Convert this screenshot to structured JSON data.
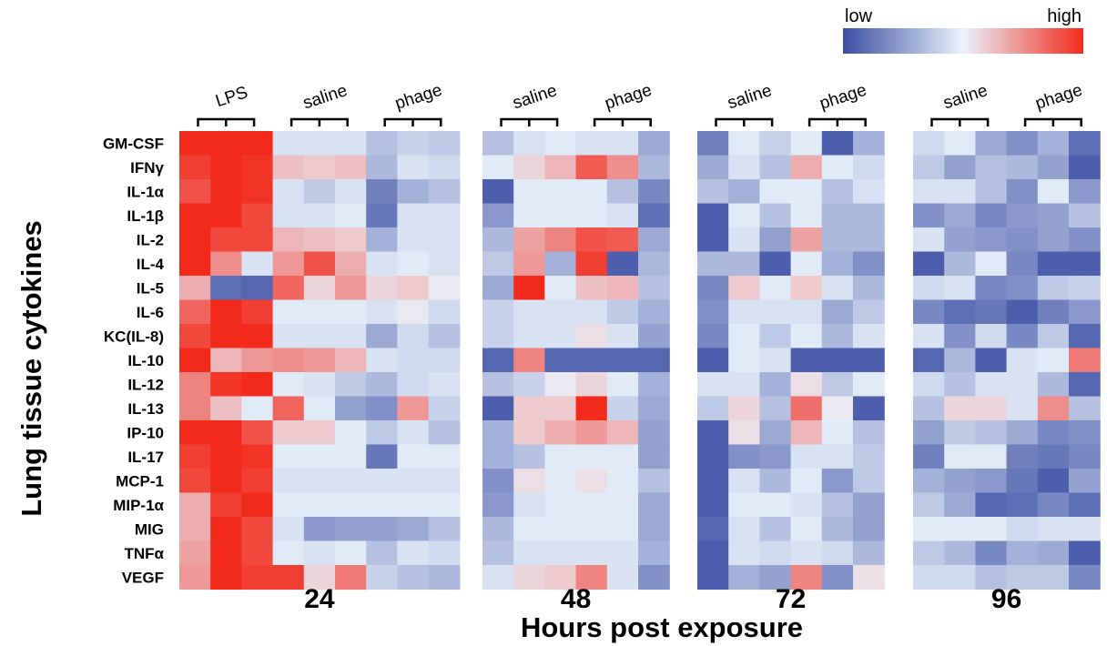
{
  "chart_data": {
    "type": "heatmap",
    "xlabel": "Hours post exposure",
    "ylabel": "Lung tissue cytokines",
    "legend": {
      "low_label": "low",
      "high_label": "high",
      "colors": [
        "#3b4fa3",
        "#eaf2fb",
        "#f22a1c"
      ],
      "placement": "top-right"
    },
    "rows": [
      "GM-CSF",
      "IFNγ",
      "IL-1α",
      "IL-1β",
      "IL-2",
      "IL-4",
      "IL-5",
      "IL-6",
      "KC(IL-8)",
      "IL-10",
      "IL-12",
      "IL-13",
      "IP-10",
      "IL-17",
      "MCP-1",
      "MIP-1α",
      "MIG",
      "TNFα",
      "VEGF"
    ],
    "panels": [
      {
        "time": "24",
        "groups": [
          {
            "label": "LPS",
            "columns": 3
          },
          {
            "label": "saline",
            "columns": 3
          },
          {
            "label": "phage",
            "columns": 3
          }
        ],
        "values": [
          [
            1.0,
            1.0,
            1.0,
            -0.1,
            -0.1,
            -0.1,
            -0.3,
            -0.2,
            -0.25
          ],
          [
            0.9,
            1.0,
            0.95,
            0.25,
            0.2,
            0.25,
            -0.35,
            -0.1,
            -0.15
          ],
          [
            0.8,
            1.0,
            0.95,
            -0.1,
            -0.25,
            -0.1,
            -0.7,
            -0.4,
            -0.3
          ],
          [
            1.0,
            1.0,
            0.85,
            -0.1,
            -0.1,
            -0.05,
            -0.75,
            -0.1,
            -0.1
          ],
          [
            1.0,
            0.85,
            0.85,
            0.3,
            0.25,
            0.2,
            -0.4,
            -0.1,
            -0.1
          ],
          [
            1.0,
            0.5,
            -0.1,
            0.45,
            0.8,
            0.35,
            -0.1,
            -0.05,
            -0.1
          ],
          [
            0.35,
            -0.8,
            -0.85,
            0.7,
            0.15,
            0.45,
            0.15,
            0.2,
            0.05
          ],
          [
            0.7,
            1.0,
            0.9,
            -0.05,
            -0.05,
            -0.05,
            -0.1,
            0.05,
            -0.15
          ],
          [
            0.85,
            1.0,
            1.0,
            -0.1,
            -0.1,
            -0.1,
            -0.45,
            -0.15,
            -0.3
          ],
          [
            1.0,
            0.3,
            0.45,
            0.5,
            0.45,
            0.3,
            -0.1,
            -0.15,
            -0.15
          ],
          [
            0.55,
            0.95,
            1.0,
            -0.05,
            -0.1,
            -0.25,
            -0.35,
            -0.15,
            -0.1
          ],
          [
            0.55,
            0.25,
            -0.05,
            0.7,
            -0.05,
            -0.5,
            -0.6,
            0.45,
            -0.2
          ],
          [
            1.0,
            1.0,
            0.8,
            0.2,
            0.2,
            -0.05,
            -0.25,
            -0.1,
            -0.3
          ],
          [
            0.9,
            1.0,
            0.95,
            -0.05,
            -0.05,
            -0.05,
            -0.75,
            -0.05,
            -0.05
          ],
          [
            0.85,
            1.0,
            0.9,
            -0.1,
            -0.1,
            -0.1,
            -0.1,
            -0.1,
            -0.1
          ],
          [
            0.35,
            0.9,
            1.0,
            -0.05,
            -0.05,
            -0.05,
            -0.05,
            -0.05,
            -0.05
          ],
          [
            0.35,
            1.0,
            0.85,
            -0.1,
            -0.55,
            -0.5,
            -0.5,
            -0.45,
            -0.3
          ],
          [
            0.4,
            1.0,
            0.85,
            -0.05,
            -0.1,
            -0.05,
            -0.3,
            -0.1,
            -0.15
          ],
          [
            0.45,
            1.0,
            0.9,
            0.9,
            0.15,
            0.6,
            -0.2,
            -0.3,
            -0.35
          ]
        ]
      },
      {
        "time": "48",
        "groups": [
          {
            "label": "saline",
            "columns": 3
          },
          {
            "label": "phage",
            "columns": 3
          }
        ],
        "values": [
          [
            -0.3,
            -0.1,
            -0.05,
            -0.1,
            -0.1,
            -0.45
          ],
          [
            -0.05,
            0.15,
            0.3,
            0.75,
            0.5,
            -0.35
          ],
          [
            -0.9,
            -0.05,
            -0.05,
            -0.05,
            -0.3,
            -0.65
          ],
          [
            -0.55,
            -0.05,
            -0.05,
            -0.05,
            -0.1,
            -0.8
          ],
          [
            -0.35,
            0.4,
            0.55,
            0.8,
            0.75,
            -0.45
          ],
          [
            -0.25,
            0.45,
            -0.4,
            0.9,
            -0.9,
            -0.35
          ],
          [
            -0.45,
            1.0,
            -0.05,
            0.25,
            0.3,
            -0.3
          ],
          [
            -0.2,
            -0.1,
            -0.1,
            -0.1,
            -0.25,
            -0.4
          ],
          [
            -0.2,
            -0.1,
            -0.1,
            0.1,
            -0.1,
            -0.5
          ],
          [
            -0.85,
            0.55,
            -0.85,
            -0.85,
            -0.85,
            -0.85
          ],
          [
            -0.3,
            -0.2,
            0.05,
            0.15,
            -0.05,
            -0.4
          ],
          [
            -0.9,
            0.2,
            0.2,
            1.0,
            -0.2,
            -0.45
          ],
          [
            -0.4,
            0.2,
            0.35,
            0.45,
            0.3,
            -0.5
          ],
          [
            -0.4,
            -0.3,
            -0.05,
            -0.05,
            -0.05,
            -0.5
          ],
          [
            -0.6,
            0.1,
            -0.05,
            0.1,
            -0.05,
            -0.3
          ],
          [
            -0.55,
            -0.1,
            -0.05,
            -0.05,
            -0.05,
            -0.45
          ],
          [
            -0.35,
            -0.05,
            -0.05,
            -0.05,
            -0.05,
            -0.45
          ],
          [
            -0.3,
            -0.1,
            -0.1,
            -0.1,
            -0.1,
            -0.4
          ],
          [
            -0.1,
            0.15,
            0.2,
            0.55,
            -0.1,
            -0.6
          ]
        ]
      },
      {
        "time": "72",
        "groups": [
          {
            "label": "saline",
            "columns": 3
          },
          {
            "label": "phage",
            "columns": 3
          }
        ],
        "values": [
          [
            -0.7,
            -0.05,
            -0.2,
            -0.05,
            -0.9,
            -0.4
          ],
          [
            -0.45,
            -0.1,
            -0.3,
            0.35,
            -0.05,
            -0.15
          ],
          [
            -0.3,
            -0.4,
            -0.05,
            -0.05,
            -0.3,
            -0.1
          ],
          [
            -0.9,
            -0.05,
            -0.3,
            -0.05,
            -0.35,
            -0.35
          ],
          [
            -0.9,
            -0.1,
            -0.5,
            0.4,
            -0.35,
            -0.35
          ],
          [
            -0.35,
            -0.35,
            -0.9,
            -0.05,
            -0.4,
            -0.6
          ],
          [
            -0.65,
            0.2,
            -0.05,
            0.2,
            -0.1,
            -0.35
          ],
          [
            -0.6,
            -0.1,
            -0.1,
            -0.1,
            -0.45,
            -0.25
          ],
          [
            -0.65,
            -0.05,
            -0.25,
            -0.05,
            -0.35,
            -0.1
          ],
          [
            -0.9,
            -0.05,
            -0.1,
            -0.9,
            -0.9,
            -0.9
          ],
          [
            -0.1,
            -0.1,
            -0.4,
            0.1,
            -0.25,
            -0.05
          ],
          [
            -0.25,
            0.15,
            -0.3,
            0.65,
            0.05,
            -0.9
          ],
          [
            -0.9,
            0.1,
            -0.45,
            0.3,
            -0.05,
            -0.3
          ],
          [
            -0.9,
            -0.6,
            -0.55,
            -0.1,
            -0.1,
            -0.25
          ],
          [
            -0.9,
            -0.1,
            -0.35,
            -0.05,
            -0.55,
            -0.25
          ],
          [
            -0.9,
            -0.05,
            -0.05,
            -0.1,
            -0.3,
            -0.5
          ],
          [
            -0.85,
            -0.1,
            -0.3,
            -0.05,
            -0.35,
            -0.5
          ],
          [
            -0.9,
            -0.1,
            -0.15,
            -0.1,
            -0.15,
            -0.35
          ],
          [
            -0.9,
            -0.4,
            -0.5,
            0.55,
            -0.6,
            0.1
          ]
        ]
      },
      {
        "time": "96",
        "groups": [
          {
            "label": "saline",
            "columns": 3
          },
          {
            "label": "phage",
            "columns": 3
          }
        ],
        "values": [
          [
            -0.15,
            -0.05,
            -0.45,
            -0.6,
            -0.4,
            -0.8
          ],
          [
            -0.25,
            -0.5,
            -0.3,
            -0.35,
            -0.5,
            -0.9
          ],
          [
            -0.1,
            -0.1,
            -0.3,
            -0.6,
            -0.05,
            -0.55
          ],
          [
            -0.6,
            -0.45,
            -0.65,
            -0.55,
            -0.5,
            -0.3
          ],
          [
            -0.1,
            -0.5,
            -0.55,
            -0.6,
            -0.5,
            -0.6
          ],
          [
            -0.9,
            -0.35,
            -0.05,
            -0.65,
            -0.9,
            -0.9
          ],
          [
            -0.15,
            -0.1,
            -0.65,
            -0.6,
            -0.25,
            -0.2
          ],
          [
            -0.65,
            -0.8,
            -0.75,
            -0.9,
            -0.7,
            -0.55
          ],
          [
            -0.1,
            -0.6,
            -0.15,
            -0.65,
            -0.25,
            -0.85
          ],
          [
            -0.85,
            -0.35,
            -0.9,
            -0.1,
            -0.05,
            0.6
          ],
          [
            -0.15,
            -0.3,
            -0.1,
            -0.1,
            -0.35,
            -0.85
          ],
          [
            -0.3,
            0.15,
            0.15,
            -0.1,
            0.5,
            -0.3
          ],
          [
            -0.5,
            -0.25,
            -0.3,
            -0.45,
            -0.65,
            -0.6
          ],
          [
            -0.7,
            -0.05,
            -0.05,
            -0.7,
            -0.75,
            -0.65
          ],
          [
            -0.4,
            -0.5,
            -0.55,
            -0.75,
            -0.9,
            -0.5
          ],
          [
            -0.25,
            -0.45,
            -0.85,
            -0.8,
            -0.65,
            -0.8
          ],
          [
            -0.05,
            -0.05,
            -0.05,
            -0.15,
            -0.1,
            -0.1
          ],
          [
            -0.25,
            -0.35,
            -0.65,
            -0.4,
            -0.45,
            -0.9
          ],
          [
            -0.15,
            -0.15,
            -0.3,
            -0.25,
            -0.25,
            -0.65
          ]
        ]
      }
    ]
  }
}
